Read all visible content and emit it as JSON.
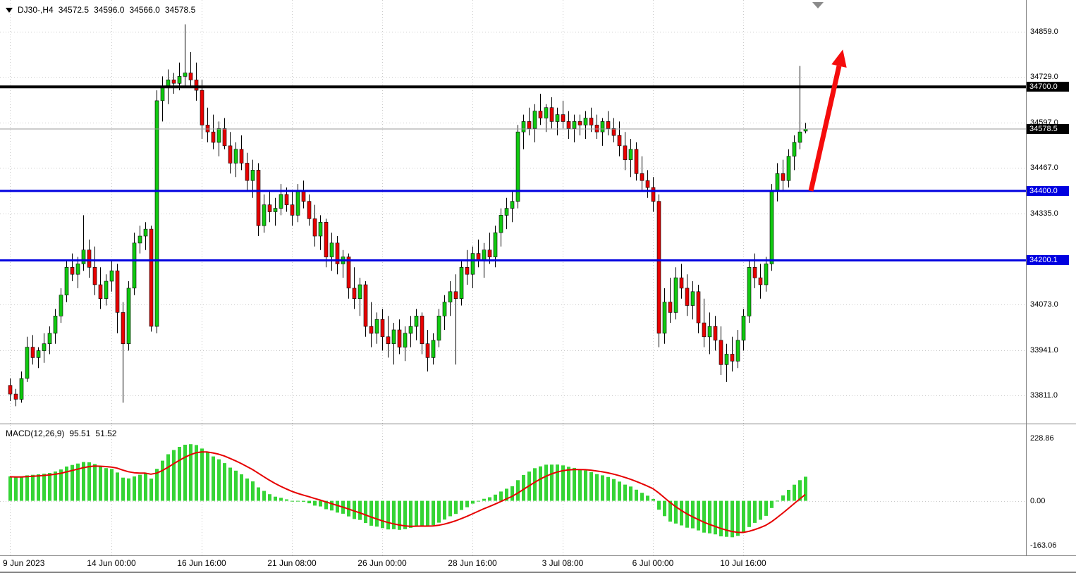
{
  "header": {
    "symbol": "DJ30-,H4",
    "open": "34572.5",
    "high": "34596.0",
    "low": "34566.0",
    "close": "34578.5"
  },
  "colors": {
    "background": "#ffffff",
    "candle_up": "#10c910",
    "candle_down": "#e80000",
    "wick": "#000000",
    "grid": "#c9c9c9",
    "axis_text": "#000000",
    "separator": "#808080",
    "blue_line": "#0000e0",
    "black_line": "#000000",
    "arrow": "#f50c0c"
  },
  "chart_data": [
    {
      "type": "candlestick",
      "symbol": "DJ30-",
      "timeframe": "H4",
      "y_ticks": [
        34859.0,
        34729.0,
        34597.0,
        34467.0,
        34335.0,
        34073.0,
        33941.0,
        33811.0
      ],
      "y_range": {
        "top": 34950,
        "bottom": 33730
      },
      "x_labels": [
        {
          "i": 0,
          "label": "9 Jun 2023"
        },
        {
          "i": 18,
          "label": "14 Jun 00:00"
        },
        {
          "i": 34,
          "label": "16 Jun 16:00"
        },
        {
          "i": 50,
          "label": "21 Jun 08:00"
        },
        {
          "i": 66,
          "label": "26 Jun 00:00"
        },
        {
          "i": 82,
          "label": "28 Jun 16:00"
        },
        {
          "i": 98,
          "label": "3 Jul 08:00"
        },
        {
          "i": 114,
          "label": "6 Jul 00:00"
        },
        {
          "i": 130,
          "label": "10 Jul 16:00"
        }
      ],
      "hlines": [
        {
          "price": 34700.0,
          "label": "34700.0",
          "color": "#000000",
          "width": 4
        },
        {
          "price": 34400.0,
          "label": "34400.0",
          "color": "#0000e0",
          "width": 3
        },
        {
          "price": 34200.1,
          "label": "34200.1",
          "color": "#0000e0",
          "width": 3
        }
      ],
      "last_price": {
        "price": 34578.5,
        "label": "34578.5",
        "line_color": "#9a9a9a",
        "box_color": "#000000"
      },
      "annotations": [
        {
          "type": "arrow",
          "color": "#f50c0c",
          "from": {
            "bar": 142,
            "price": 34400
          },
          "to": {
            "bar": 147,
            "price": 34760
          }
        }
      ],
      "candles": [
        [
          33840,
          33860,
          33795,
          33815
        ],
        [
          33815,
          33830,
          33780,
          33800
        ],
        [
          33800,
          33880,
          33790,
          33860
        ],
        [
          33860,
          33980,
          33850,
          33950
        ],
        [
          33950,
          33985,
          33900,
          33920
        ],
        [
          33920,
          33950,
          33890,
          33940
        ],
        [
          33940,
          33990,
          33905,
          33960
        ],
        [
          33960,
          34010,
          33930,
          33990
        ],
        [
          33990,
          34060,
          33960,
          34040
        ],
        [
          34040,
          34120,
          34020,
          34100
        ],
        [
          34100,
          34200,
          34080,
          34180
        ],
        [
          34180,
          34220,
          34140,
          34160
        ],
        [
          34160,
          34210,
          34120,
          34190
        ],
        [
          34190,
          34330,
          34170,
          34230
        ],
        [
          34230,
          34260,
          34150,
          34180
        ],
        [
          34180,
          34240,
          34100,
          34130
        ],
        [
          34130,
          34180,
          34060,
          34090
        ],
        [
          34090,
          34160,
          34070,
          34140
        ],
        [
          34140,
          34200,
          34110,
          34170
        ],
        [
          34170,
          34190,
          33990,
          34050
        ],
        [
          34050,
          34080,
          33790,
          33960
        ],
        [
          33960,
          34140,
          33940,
          34120
        ],
        [
          34120,
          34280,
          34100,
          34250
        ],
        [
          34250,
          34300,
          34220,
          34270
        ],
        [
          34270,
          34310,
          34230,
          34290
        ],
        [
          34290,
          34300,
          33995,
          34010
        ],
        [
          34010,
          34690,
          33990,
          34660
        ],
        [
          34660,
          34730,
          34600,
          34700
        ],
        [
          34700,
          34750,
          34650,
          34720
        ],
        [
          34720,
          34740,
          34680,
          34710
        ],
        [
          34710,
          34770,
          34690,
          34730
        ],
        [
          34730,
          34880,
          34700,
          34740
        ],
        [
          34740,
          34800,
          34700,
          34720
        ],
        [
          34720,
          34770,
          34660,
          34690
        ],
        [
          34690,
          34720,
          34550,
          34590
        ],
        [
          34590,
          34640,
          34540,
          34570
        ],
        [
          34570,
          34620,
          34520,
          34540
        ],
        [
          34540,
          34600,
          34500,
          34580
        ],
        [
          34580,
          34610,
          34520,
          34530
        ],
        [
          34530,
          34570,
          34450,
          34480
        ],
        [
          34480,
          34540,
          34440,
          34520
        ],
        [
          34520,
          34560,
          34460,
          34480
        ],
        [
          34480,
          34510,
          34400,
          34430
        ],
        [
          34430,
          34490,
          34380,
          34460
        ],
        [
          34460,
          34480,
          34270,
          34300
        ],
        [
          34300,
          34390,
          34280,
          34360
        ],
        [
          34360,
          34400,
          34310,
          34340
        ],
        [
          34340,
          34380,
          34300,
          34350
        ],
        [
          34350,
          34420,
          34330,
          34390
        ],
        [
          34390,
          34410,
          34340,
          34360
        ],
        [
          34360,
          34400,
          34300,
          34330
        ],
        [
          34330,
          34420,
          34310,
          34400
        ],
        [
          34400,
          34430,
          34350,
          34370
        ],
        [
          34370,
          34390,
          34300,
          34320
        ],
        [
          34320,
          34360,
          34240,
          34270
        ],
        [
          34270,
          34330,
          34230,
          34310
        ],
        [
          34310,
          34320,
          34180,
          34210
        ],
        [
          34210,
          34280,
          34170,
          34250
        ],
        [
          34250,
          34270,
          34160,
          34190
        ],
        [
          34190,
          34230,
          34150,
          34210
        ],
        [
          34210,
          34220,
          34090,
          34120
        ],
        [
          34120,
          34180,
          34060,
          34090
        ],
        [
          34090,
          34150,
          34040,
          34130
        ],
        [
          34130,
          34140,
          33980,
          34010
        ],
        [
          34010,
          34080,
          33950,
          33990
        ],
        [
          33990,
          34050,
          33960,
          34030
        ],
        [
          34030,
          34060,
          33940,
          33980
        ],
        [
          33980,
          34040,
          33920,
          33960
        ],
        [
          33960,
          34020,
          33900,
          34000
        ],
        [
          34000,
          34030,
          33930,
          33950
        ],
        [
          33950,
          34010,
          33910,
          33990
        ],
        [
          33990,
          34040,
          33950,
          34010
        ],
        [
          34010,
          34060,
          33970,
          34040
        ],
        [
          34040,
          34050,
          33930,
          33960
        ],
        [
          33960,
          34000,
          33880,
          33920
        ],
        [
          33920,
          33990,
          33900,
          33970
        ],
        [
          33970,
          34060,
          33950,
          34040
        ],
        [
          34040,
          34100,
          34000,
          34080
        ],
        [
          34080,
          34140,
          34040,
          34110
        ],
        [
          34110,
          34160,
          33900,
          34090
        ],
        [
          34090,
          34200,
          34070,
          34180
        ],
        [
          34180,
          34230,
          34130,
          34160
        ],
        [
          34160,
          34240,
          34120,
          34220
        ],
        [
          34220,
          34260,
          34180,
          34200
        ],
        [
          34200,
          34250,
          34150,
          34230
        ],
        [
          34230,
          34280,
          34190,
          34210
        ],
        [
          34210,
          34300,
          34180,
          34280
        ],
        [
          34280,
          34350,
          34240,
          34330
        ],
        [
          34330,
          34380,
          34290,
          34350
        ],
        [
          34350,
          34400,
          34310,
          34370
        ],
        [
          34370,
          34590,
          34350,
          34570
        ],
        [
          34570,
          34620,
          34520,
          34600
        ],
        [
          34600,
          34640,
          34560,
          34580
        ],
        [
          34580,
          34650,
          34540,
          34630
        ],
        [
          34630,
          34680,
          34590,
          34610
        ],
        [
          34610,
          34650,
          34570,
          34640
        ],
        [
          34640,
          34670,
          34580,
          34600
        ],
        [
          34600,
          34640,
          34560,
          34620
        ],
        [
          34620,
          34660,
          34580,
          34600
        ],
        [
          34600,
          34630,
          34550,
          34580
        ],
        [
          34580,
          34620,
          34540,
          34600
        ],
        [
          34600,
          34620,
          34560,
          34590
        ],
        [
          34590,
          34630,
          34550,
          34610
        ],
        [
          34610,
          34640,
          34570,
          34590
        ],
        [
          34590,
          34620,
          34550,
          34570
        ],
        [
          34570,
          34610,
          34530,
          34600
        ],
        [
          34600,
          34630,
          34560,
          34580
        ],
        [
          34580,
          34610,
          34540,
          34560
        ],
        [
          34560,
          34600,
          34500,
          34530
        ],
        [
          34530,
          34570,
          34460,
          34490
        ],
        [
          34490,
          34550,
          34440,
          34520
        ],
        [
          34520,
          34540,
          34430,
          34450
        ],
        [
          34450,
          34500,
          34400,
          34430
        ],
        [
          34430,
          34460,
          34380,
          34410
        ],
        [
          34410,
          34440,
          34340,
          34370
        ],
        [
          34370,
          34390,
          33950,
          33990
        ],
        [
          33990,
          34120,
          33960,
          34080
        ],
        [
          34080,
          34150,
          34020,
          34050
        ],
        [
          34050,
          34180,
          34030,
          34150
        ],
        [
          34150,
          34190,
          34090,
          34120
        ],
        [
          34120,
          34160,
          34040,
          34070
        ],
        [
          34070,
          34140,
          34030,
          34110
        ],
        [
          34110,
          34130,
          33990,
          34020
        ],
        [
          34020,
          34090,
          33950,
          33980
        ],
        [
          33980,
          34050,
          33930,
          34010
        ],
        [
          34010,
          34040,
          33940,
          33970
        ],
        [
          33970,
          34010,
          33870,
          33900
        ],
        [
          33900,
          33960,
          33850,
          33930
        ],
        [
          33930,
          33980,
          33880,
          33910
        ],
        [
          33910,
          34000,
          33890,
          33970
        ],
        [
          33970,
          34060,
          33940,
          34040
        ],
        [
          34040,
          34200,
          34020,
          34180
        ],
        [
          34180,
          34220,
          34120,
          34150
        ],
        [
          34150,
          34190,
          34090,
          34130
        ],
        [
          34130,
          34210,
          34110,
          34190
        ],
        [
          34190,
          34420,
          34170,
          34400
        ],
        [
          34400,
          34480,
          34370,
          34450
        ],
        [
          34450,
          34490,
          34400,
          34430
        ],
        [
          34430,
          34520,
          34410,
          34500
        ],
        [
          34500,
          34560,
          34460,
          34540
        ],
        [
          34540,
          34760,
          34520,
          34570
        ],
        [
          34572.5,
          34596.0,
          34566.0,
          34578.5
        ]
      ]
    },
    {
      "type": "macd",
      "label": "MACD(12,26,9)",
      "params": [
        12,
        26,
        9
      ],
      "value_main": "95.51",
      "value_signal": "51.52",
      "axis_ticks": [
        "228.86",
        "0.00",
        "-163.06"
      ],
      "y_range": {
        "top": 278,
        "bottom": -200
      },
      "hist_color": "#35d435",
      "signal_color": "#e60000",
      "warmup_closes": [
        33350,
        33380,
        33360,
        33420,
        33400,
        33450,
        33480,
        33460,
        33520,
        33500,
        33560,
        33540,
        33600,
        33580,
        33640,
        33620,
        33660,
        33700,
        33680,
        33720,
        33700,
        33740,
        33760,
        33730,
        33780,
        33760,
        33800,
        33780,
        33820,
        33840
      ]
    }
  ]
}
